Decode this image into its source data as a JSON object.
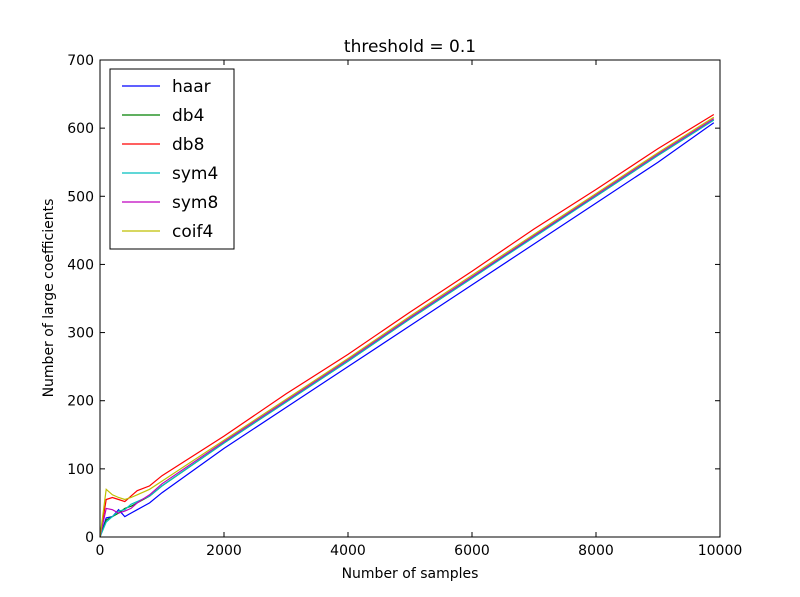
{
  "chart_data": {
    "type": "line",
    "title": "threshold = 0.1",
    "xlabel": "Number of samples",
    "ylabel": "Number of large coefficients",
    "xlim": [
      0,
      10000
    ],
    "ylim": [
      0,
      700
    ],
    "xticks": [
      0,
      2000,
      4000,
      6000,
      8000,
      10000
    ],
    "yticks": [
      0,
      100,
      200,
      300,
      400,
      500,
      600,
      700
    ],
    "grid": false,
    "legend_placement": "upper-left",
    "series": [
      {
        "name": "haar",
        "color": "#0000ff",
        "x": [
          0,
          100,
          200,
          300,
          400,
          500,
          600,
          800,
          1000,
          2000,
          3000,
          4000,
          5000,
          6000,
          7000,
          8000,
          9000,
          9900
        ],
        "values": [
          0,
          28,
          30,
          40,
          30,
          35,
          40,
          50,
          65,
          130,
          190,
          250,
          310,
          370,
          430,
          490,
          550,
          608
        ]
      },
      {
        "name": "db4",
        "color": "#008000",
        "x": [
          0,
          100,
          200,
          300,
          400,
          500,
          600,
          800,
          1000,
          2000,
          3000,
          4000,
          5000,
          6000,
          7000,
          8000,
          9000,
          9900
        ],
        "values": [
          0,
          25,
          30,
          35,
          42,
          45,
          50,
          60,
          75,
          138,
          198,
          258,
          320,
          380,
          442,
          500,
          560,
          612
        ]
      },
      {
        "name": "db8",
        "color": "#ff0000",
        "x": [
          0,
          100,
          200,
          300,
          400,
          500,
          600,
          800,
          1000,
          2000,
          3000,
          4000,
          5000,
          6000,
          7000,
          8000,
          9000,
          9900
        ],
        "values": [
          0,
          55,
          58,
          55,
          52,
          60,
          68,
          75,
          90,
          148,
          210,
          268,
          330,
          390,
          452,
          510,
          570,
          620
        ]
      },
      {
        "name": "sym4",
        "color": "#00bfbf",
        "x": [
          0,
          100,
          200,
          300,
          400,
          500,
          600,
          800,
          1000,
          2000,
          3000,
          4000,
          5000,
          6000,
          7000,
          8000,
          9000,
          9900
        ],
        "values": [
          0,
          22,
          30,
          38,
          40,
          48,
          52,
          60,
          75,
          138,
          198,
          258,
          320,
          380,
          440,
          500,
          560,
          612
        ]
      },
      {
        "name": "sym8",
        "color": "#bf00bf",
        "x": [
          0,
          100,
          200,
          300,
          400,
          500,
          600,
          800,
          1000,
          2000,
          3000,
          4000,
          5000,
          6000,
          7000,
          8000,
          9000,
          9900
        ],
        "values": [
          0,
          42,
          40,
          35,
          38,
          42,
          50,
          62,
          78,
          140,
          200,
          260,
          322,
          382,
          442,
          502,
          562,
          614
        ]
      },
      {
        "name": "coif4",
        "color": "#bfbf00",
        "x": [
          0,
          100,
          200,
          300,
          400,
          500,
          600,
          800,
          1000,
          2000,
          3000,
          4000,
          5000,
          6000,
          7000,
          8000,
          9000,
          9900
        ],
        "values": [
          0,
          70,
          62,
          58,
          55,
          58,
          62,
          70,
          82,
          142,
          202,
          262,
          324,
          384,
          444,
          504,
          564,
          616
        ]
      }
    ]
  }
}
